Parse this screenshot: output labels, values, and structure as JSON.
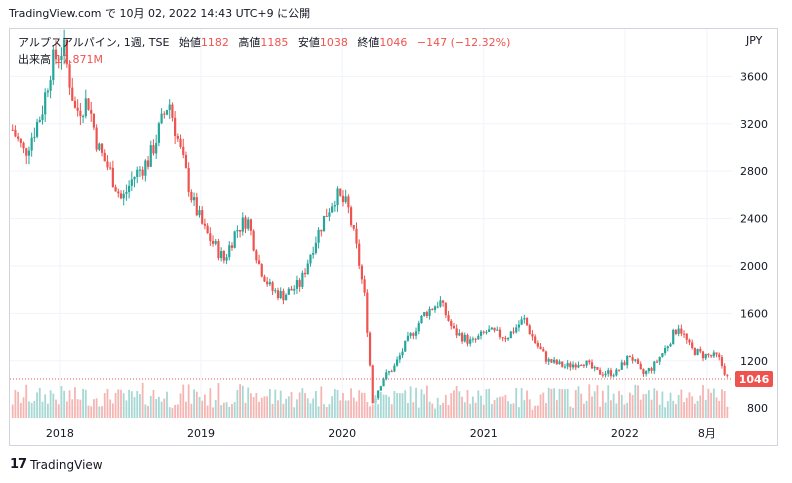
{
  "header": {
    "publisher": "TradingView.com",
    "published_text": "で 10月 02, 2022 14:43 UTC+9 に公開"
  },
  "legend": {
    "symbol": "アルプスアルパイン, 1週, TSE",
    "open_label": "始値",
    "open": "1182",
    "high_label": "高値",
    "high": "1185",
    "low_label": "安値",
    "low": "1038",
    "close_label": "終値",
    "close": "1046",
    "change": "−147 (−12.32%)",
    "volume_label": "出来高",
    "volume": "17.871M"
  },
  "currency": "JPY",
  "colors": {
    "up": "#26a69a",
    "down": "#ef5350",
    "vol_up": "#a8d8d4",
    "vol_down": "#f5b5b3",
    "grid": "#f0f3fa"
  },
  "footer": {
    "logo_mark": "17",
    "logo_text": "TradingView"
  },
  "chart_data": {
    "type": "candlestick",
    "ylim": [
      700,
      4000
    ],
    "y_ticks": [
      800,
      1200,
      1600,
      2000,
      2400,
      2800,
      3200,
      3600
    ],
    "x_tick_labels": [
      "2018",
      "2019",
      "2020",
      "2021",
      "2022",
      "8月"
    ],
    "x_tick_dates": [
      "2018-01-01",
      "2019-01-01",
      "2020-01-01",
      "2021-01-01",
      "2022-01-01",
      "2022-08-01"
    ],
    "last_price_label": "1046",
    "last_price": 1046,
    "grid": true,
    "series": [
      {
        "name": "price",
        "points": [
          [
            "2017-09-01",
            3150
          ],
          [
            "2017-10-01",
            2950
          ],
          [
            "2017-11-15",
            3300
          ],
          [
            "2017-12-10",
            3700
          ],
          [
            "2018-01-10",
            3850
          ],
          [
            "2018-02-10",
            3300
          ],
          [
            "2018-03-15",
            3400
          ],
          [
            "2018-04-10",
            3000
          ],
          [
            "2018-05-10",
            2800
          ],
          [
            "2018-06-10",
            2550
          ],
          [
            "2018-07-10",
            2750
          ],
          [
            "2018-08-20",
            2900
          ],
          [
            "2018-09-20",
            3200
          ],
          [
            "2018-10-10",
            3400
          ],
          [
            "2018-11-10",
            2950
          ],
          [
            "2018-12-10",
            2550
          ],
          [
            "2019-01-10",
            2300
          ],
          [
            "2019-02-10",
            2150
          ],
          [
            "2019-03-01",
            2050
          ],
          [
            "2019-04-01",
            2300
          ],
          [
            "2019-05-01",
            2400
          ],
          [
            "2019-06-01",
            2000
          ],
          [
            "2019-07-01",
            1800
          ],
          [
            "2019-08-01",
            1750
          ],
          [
            "2019-09-15",
            1850
          ],
          [
            "2019-10-15",
            2150
          ],
          [
            "2019-11-15",
            2400
          ],
          [
            "2019-12-15",
            2600
          ],
          [
            "2020-01-15",
            2500
          ],
          [
            "2020-02-10",
            2100
          ],
          [
            "2020-03-01",
            1700
          ],
          [
            "2020-03-20",
            850
          ],
          [
            "2020-04-15",
            1050
          ],
          [
            "2020-05-15",
            1150
          ],
          [
            "2020-06-15",
            1350
          ],
          [
            "2020-08-01",
            1600
          ],
          [
            "2020-09-10",
            1700
          ],
          [
            "2020-10-15",
            1450
          ],
          [
            "2020-12-01",
            1350
          ],
          [
            "2021-01-10",
            1450
          ],
          [
            "2021-03-01",
            1400
          ],
          [
            "2021-04-15",
            1550
          ],
          [
            "2021-05-15",
            1350
          ],
          [
            "2021-06-15",
            1200
          ],
          [
            "2021-08-01",
            1150
          ],
          [
            "2021-09-15",
            1200
          ],
          [
            "2021-10-20",
            1100
          ],
          [
            "2021-12-10",
            1100
          ],
          [
            "2022-01-15",
            1250
          ],
          [
            "2022-02-15",
            1080
          ],
          [
            "2022-03-15",
            1150
          ],
          [
            "2022-04-15",
            1300
          ],
          [
            "2022-05-20",
            1500
          ],
          [
            "2022-06-20",
            1300
          ],
          [
            "2022-07-20",
            1250
          ],
          [
            "2022-08-30",
            1230
          ],
          [
            "2022-09-25",
            1046
          ]
        ]
      }
    ],
    "volume_series": {
      "name": "出来高",
      "last": "17.871M"
    }
  }
}
